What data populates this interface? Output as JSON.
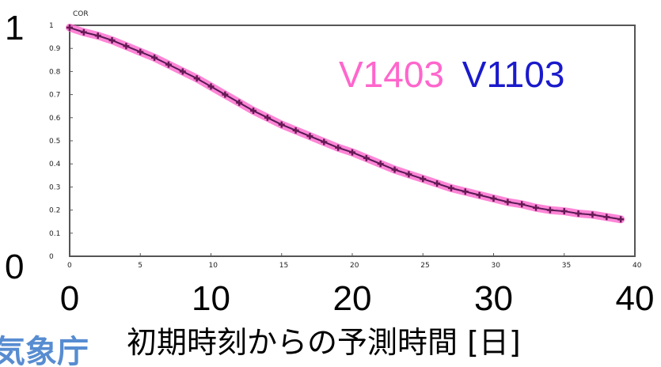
{
  "chart_data": {
    "type": "line",
    "panel_label": "COR",
    "x": [
      0,
      1,
      2,
      3,
      4,
      5,
      6,
      7,
      8,
      9,
      10,
      11,
      12,
      13,
      14,
      15,
      16,
      17,
      18,
      19,
      20,
      21,
      22,
      23,
      24,
      25,
      26,
      27,
      28,
      29,
      30,
      31,
      32,
      33,
      34,
      35,
      36,
      37,
      38,
      39
    ],
    "series": [
      {
        "name": "V1403",
        "color": "#ff66cc",
        "values": [
          0.99,
          0.97,
          0.955,
          0.935,
          0.91,
          0.885,
          0.86,
          0.83,
          0.8,
          0.77,
          0.735,
          0.7,
          0.665,
          0.63,
          0.6,
          0.57,
          0.545,
          0.52,
          0.495,
          0.47,
          0.45,
          0.425,
          0.4,
          0.375,
          0.355,
          0.335,
          0.315,
          0.295,
          0.28,
          0.265,
          0.25,
          0.235,
          0.225,
          0.21,
          0.2,
          0.195,
          0.185,
          0.18,
          0.17,
          0.16
        ]
      },
      {
        "name": "V1103",
        "color": "#1a1acc",
        "values": [
          0.99,
          0.97,
          0.955,
          0.935,
          0.91,
          0.885,
          0.86,
          0.83,
          0.8,
          0.77,
          0.735,
          0.7,
          0.665,
          0.63,
          0.6,
          0.57,
          0.545,
          0.52,
          0.495,
          0.47,
          0.45,
          0.425,
          0.4,
          0.375,
          0.355,
          0.335,
          0.315,
          0.295,
          0.28,
          0.265,
          0.25,
          0.235,
          0.225,
          0.21,
          0.2,
          0.195,
          0.185,
          0.18,
          0.17,
          0.16
        ]
      }
    ],
    "xlim": [
      0,
      40
    ],
    "ylim": [
      0,
      1
    ],
    "big_x_ticks": [
      "0",
      "10",
      "20",
      "30",
      "40"
    ],
    "big_y_ticks": [
      "0",
      "1"
    ],
    "small_x_ticks": [
      "0",
      "5",
      "10",
      "15",
      "20",
      "25",
      "30",
      "35",
      "40"
    ],
    "small_y_ticks": [
      "0",
      "0.1",
      "0.2",
      "0.3",
      "0.4",
      "0.5",
      "0.6",
      "0.7",
      "0.8",
      "0.9",
      "1"
    ],
    "xlabel": "初期時刻からの予測時間 [日]",
    "grid": false
  },
  "logo_text": "気象庁"
}
